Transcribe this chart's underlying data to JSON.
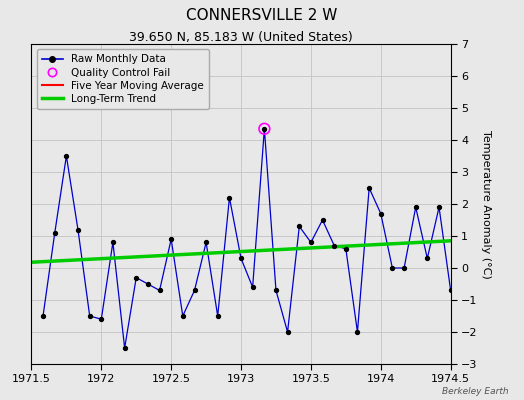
{
  "title": "CONNERSVILLE 2 W",
  "subtitle": "39.650 N, 85.183 W (United States)",
  "watermark": "Berkeley Earth",
  "x_min": 1971.5,
  "x_max": 1974.5,
  "y_min": -3,
  "y_max": 7,
  "y_ticks": [
    -3,
    -2,
    -1,
    0,
    1,
    2,
    3,
    4,
    5,
    6,
    7
  ],
  "x_ticks": [
    1971.5,
    1972,
    1972.5,
    1973,
    1973.5,
    1974,
    1974.5
  ],
  "x_tick_labels": [
    "1971.5",
    "1972",
    "1972.5",
    "1973",
    "1973.5",
    "1974",
    "1974.5"
  ],
  "background_color": "#e8e8e8",
  "plot_bg_color": "#e8e8e8",
  "raw_x": [
    1971.583,
    1971.667,
    1971.75,
    1971.833,
    1971.917,
    1972.0,
    1972.083,
    1972.167,
    1972.25,
    1972.333,
    1972.417,
    1972.5,
    1972.583,
    1972.667,
    1972.75,
    1972.833,
    1972.917,
    1973.0,
    1973.083,
    1973.167,
    1973.25,
    1973.333,
    1973.417,
    1973.5,
    1973.583,
    1973.667,
    1973.75,
    1973.833,
    1973.917,
    1974.0,
    1974.083,
    1974.167,
    1974.25,
    1974.333,
    1974.417,
    1974.5
  ],
  "raw_y": [
    -1.5,
    1.1,
    3.5,
    1.2,
    -1.5,
    -1.6,
    0.8,
    -2.5,
    -0.3,
    -0.5,
    -0.7,
    0.9,
    -1.5,
    -0.7,
    0.8,
    -1.5,
    2.2,
    0.3,
    -0.6,
    4.35,
    -0.7,
    -2.0,
    1.3,
    0.8,
    1.5,
    0.7,
    0.6,
    -2.0,
    2.5,
    1.7,
    0.0,
    0.0,
    1.9,
    0.3,
    1.9,
    -0.7
  ],
  "qc_fail_x": [
    1973.167
  ],
  "qc_fail_y": [
    4.35
  ],
  "trend_x": [
    1971.5,
    1974.5
  ],
  "trend_y": [
    0.18,
    0.85
  ],
  "line_color": "#0000cc",
  "marker_color": "#000000",
  "trend_color": "#00cc00",
  "qc_color": "#ff00ff",
  "moving_avg_color": "#ff0000",
  "grid_color": "#c8c8c8",
  "title_fontsize": 11,
  "subtitle_fontsize": 9,
  "tick_fontsize": 8,
  "ylabel": "Temperature Anomaly (°C)"
}
